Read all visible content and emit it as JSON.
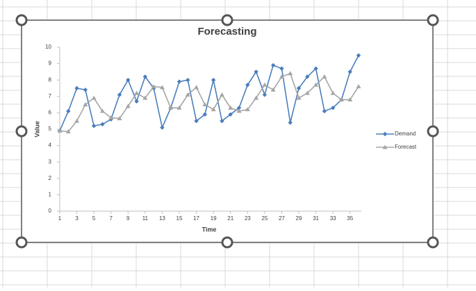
{
  "chart_data": {
    "type": "line",
    "title": "Forecasting",
    "x_label": "Time",
    "y_label": "Value",
    "x": [
      1,
      2,
      3,
      4,
      5,
      6,
      7,
      8,
      9,
      10,
      11,
      12,
      13,
      14,
      15,
      16,
      17,
      18,
      19,
      20,
      21,
      22,
      23,
      24,
      25,
      26,
      27,
      28,
      29,
      30,
      31,
      32,
      33,
      34,
      35,
      36
    ],
    "series": [
      {
        "name": "Demand",
        "color": "#4a7ebb",
        "marker": "diamond",
        "values": [
          4.9,
          6.1,
          7.5,
          7.4,
          5.2,
          5.3,
          5.6,
          7.1,
          8.0,
          6.7,
          8.2,
          7.5,
          5.1,
          6.3,
          7.9,
          8.0,
          5.5,
          5.9,
          8.0,
          5.5,
          5.9,
          6.3,
          7.7,
          8.5,
          7.1,
          8.9,
          8.7,
          5.4,
          7.5,
          8.2,
          8.7,
          6.1,
          6.3,
          6.8,
          8.5,
          9.5
        ]
      },
      {
        "name": "Forecast",
        "color": "#a5a5a5",
        "marker": "triangle",
        "values": [
          4.9,
          4.85,
          5.5,
          6.5,
          6.9,
          6.1,
          5.7,
          5.65,
          6.4,
          7.2,
          6.9,
          7.6,
          7.55,
          6.3,
          6.3,
          7.1,
          7.55,
          6.5,
          6.2,
          7.1,
          6.3,
          6.1,
          6.2,
          6.9,
          7.7,
          7.4,
          8.2,
          8.4,
          6.9,
          7.2,
          7.7,
          8.2,
          7.2,
          6.8,
          6.8,
          7.6
        ]
      }
    ],
    "xlim": [
      1,
      36
    ],
    "xticks": [
      1,
      3,
      5,
      7,
      9,
      11,
      13,
      15,
      17,
      19,
      21,
      23,
      25,
      27,
      29,
      31,
      33,
      35
    ],
    "ylim": [
      0,
      10
    ],
    "yticks": [
      0,
      1,
      2,
      3,
      4,
      5,
      6,
      7,
      8,
      9,
      10
    ],
    "grid": false,
    "legend": "right"
  }
}
